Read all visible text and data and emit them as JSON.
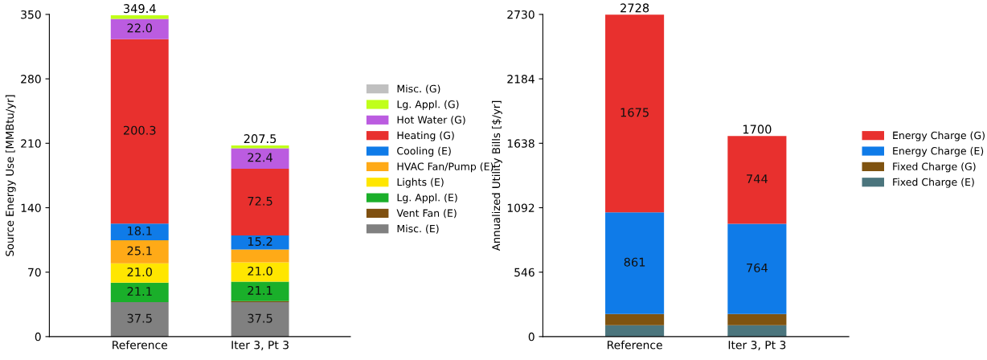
{
  "chart_data": [
    {
      "type": "bar",
      "stacked": true,
      "ylabel": "Source Energy Use [MMBtu/yr]",
      "categories": [
        "Reference",
        "Iter 3, Pt 3"
      ],
      "ylim": [
        0,
        350
      ],
      "yticks": [
        0,
        70,
        140,
        210,
        280,
        350
      ],
      "grid": false,
      "legend": "right",
      "totals": [
        "349.4",
        "207.5"
      ],
      "series": [
        {
          "name": "Misc. (E)",
          "color": "#808080",
          "values": [
            37.5,
            37.5
          ],
          "value_labels": [
            "37.5",
            "37.5"
          ]
        },
        {
          "name": "Vent Fan (E)",
          "color": "#7f5010",
          "values": [
            0,
            1
          ],
          "value_labels": [
            null,
            null
          ]
        },
        {
          "name": "Lg. Appl. (E)",
          "color": "#1aaf2a",
          "values": [
            21.1,
            21.1
          ],
          "value_labels": [
            "21.1",
            "21.1"
          ]
        },
        {
          "name": "Lights (E)",
          "color": "#ffe600",
          "values": [
            21.0,
            21.0
          ],
          "value_labels": [
            "21.0",
            "21.0"
          ]
        },
        {
          "name": "HVAC Fan/Pump (E)",
          "color": "#ffaa17",
          "values": [
            25.1,
            14
          ],
          "value_labels": [
            "25.1",
            null
          ]
        },
        {
          "name": "Cooling (E)",
          "color": "#0f7be8",
          "values": [
            18.1,
            15.2
          ],
          "value_labels": [
            "18.1",
            "15.2"
          ]
        },
        {
          "name": "Heating (G)",
          "color": "#e8302e",
          "values": [
            200.3,
            72.5
          ],
          "value_labels": [
            "200.3",
            "72.5"
          ]
        },
        {
          "name": "Hot Water (G)",
          "color": "#bb5ce0",
          "values": [
            22.0,
            22.4
          ],
          "value_labels": [
            "22.0",
            "22.4"
          ]
        },
        {
          "name": "Lg. Appl. (G)",
          "color": "#c0ff1a",
          "values": [
            4,
            3
          ],
          "value_labels": [
            null,
            null
          ]
        },
        {
          "name": "Misc. (G)",
          "color": "#c0c0c0",
          "values": [
            0,
            0
          ],
          "value_labels": [
            null,
            null
          ]
        }
      ]
    },
    {
      "type": "bar",
      "stacked": true,
      "ylabel": "Annualized Utility Bills [$/yr]",
      "categories": [
        "Reference",
        "Iter 3, Pt 3"
      ],
      "ylim": [
        0,
        2730
      ],
      "yticks": [
        0,
        546,
        1092,
        1638,
        2184,
        2730
      ],
      "grid": false,
      "legend": "right",
      "totals": [
        "2728",
        "1700"
      ],
      "series": [
        {
          "name": "Fixed Charge (E)",
          "color": "#4b757d",
          "values": [
            96,
            96
          ],
          "value_labels": [
            null,
            null
          ]
        },
        {
          "name": "Fixed Charge (G)",
          "color": "#7f5310",
          "values": [
            96,
            96
          ],
          "value_labels": [
            null,
            null
          ]
        },
        {
          "name": "Energy Charge (E)",
          "color": "#0f7be8",
          "values": [
            861,
            764
          ],
          "value_labels": [
            "861",
            "764"
          ]
        },
        {
          "name": "Energy Charge (G)",
          "color": "#e8302e",
          "values": [
            1675,
            744
          ],
          "value_labels": [
            "1675",
            "744"
          ]
        }
      ]
    }
  ]
}
